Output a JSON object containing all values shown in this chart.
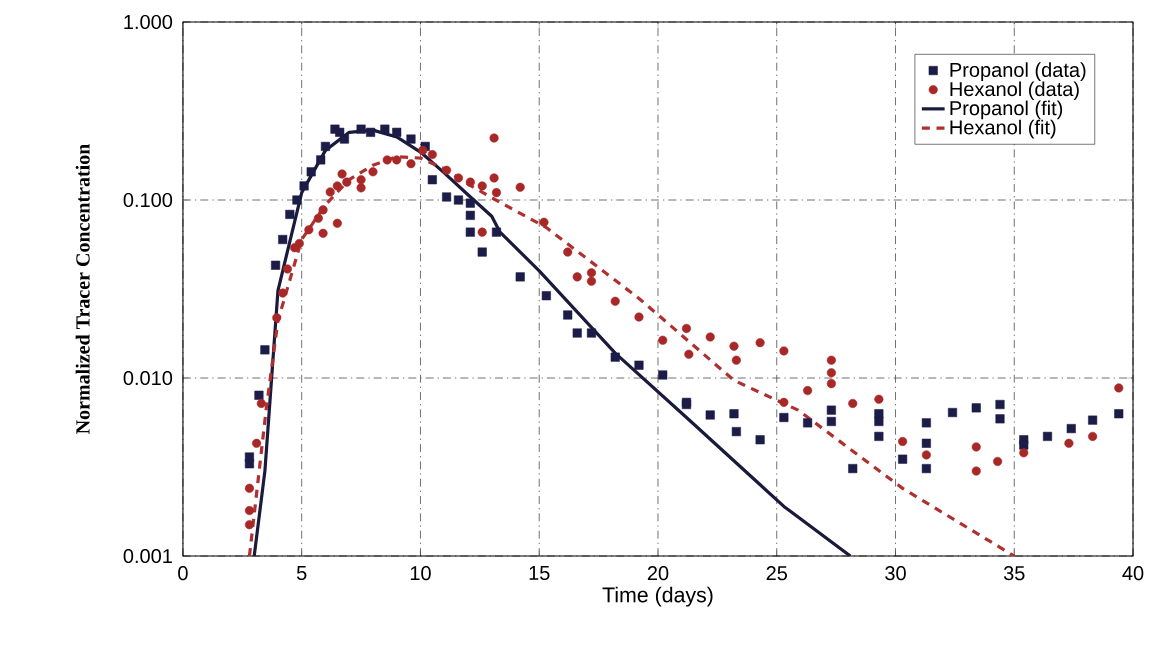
{
  "chart_data": {
    "type": "scatter",
    "xlabel": "Time (days)",
    "ylabel": "Normalized Tracer Concentration",
    "xlim": [
      0,
      40
    ],
    "ylim": [
      0.001,
      1
    ],
    "log": "y",
    "grid": true,
    "legend": "top right",
    "xticks": [
      0,
      5,
      10,
      15,
      20,
      25,
      30,
      35,
      40
    ],
    "yticks": [
      {
        "value": 0.001,
        "label": "0.001"
      },
      {
        "value": 0.01,
        "label": "0.010"
      },
      {
        "value": 0.1,
        "label": "0.100"
      },
      {
        "value": 1,
        "label": "1.000"
      }
    ],
    "series": [
      {
        "name": "Propanol (data)",
        "marker": "square",
        "color": "#1c1c48",
        "x": [
          2.8,
          2.8,
          3.2,
          3.45,
          3.9,
          4.2,
          4.5,
          4.8,
          5.1,
          5.4,
          5.8,
          6.0,
          6.4,
          6.6,
          6.8,
          7.5,
          7.9,
          8.5,
          9.0,
          9.6,
          10.2,
          10.5,
          11.1,
          11.6,
          12.1,
          12.1,
          12.1,
          12.6,
          13.2,
          14.2,
          15.3,
          16.2,
          16.6,
          17.2,
          18.2,
          19.2,
          20.2,
          21.2,
          21.2,
          22.2,
          23.2,
          23.3,
          24.3,
          25.3,
          26.3,
          27.3,
          27.3,
          28.2,
          29.3,
          29.3,
          29.3,
          30.3,
          31.3,
          31.3,
          31.3,
          32.4,
          33.4,
          34.4,
          34.4,
          35.4,
          35.4,
          36.4,
          37.4,
          38.3,
          39.4
        ],
        "values": [
          0.0033,
          0.0036,
          0.008,
          0.0144,
          0.043,
          0.06,
          0.083,
          0.1,
          0.12,
          0.144,
          0.168,
          0.2,
          0.25,
          0.24,
          0.22,
          0.25,
          0.24,
          0.25,
          0.24,
          0.22,
          0.2,
          0.13,
          0.104,
          0.1,
          0.096,
          0.082,
          0.066,
          0.051,
          0.066,
          0.037,
          0.029,
          0.0226,
          0.0179,
          0.0179,
          0.0131,
          0.0118,
          0.0104,
          0.0073,
          0.0071,
          0.0062,
          0.0063,
          0.005,
          0.0045,
          0.006,
          0.0056,
          0.0066,
          0.0057,
          0.0031,
          0.0063,
          0.0057,
          0.0047,
          0.0035,
          0.0056,
          0.0043,
          0.0031,
          0.0064,
          0.0068,
          0.0071,
          0.0059,
          0.0045,
          0.0042,
          0.0047,
          0.0052,
          0.0058,
          0.0063
        ]
      },
      {
        "name": "Hexanol (data)",
        "marker": "circle",
        "color": "#a82828",
        "x": [
          2.8,
          2.8,
          2.8,
          3.1,
          3.3,
          3.95,
          4.2,
          4.4,
          4.7,
          4.9,
          5.3,
          5.7,
          5.9,
          5.9,
          6.2,
          6.5,
          6.5,
          6.7,
          6.9,
          7.5,
          7.5,
          8.0,
          8.6,
          9.0,
          9.6,
          10.1,
          10.5,
          11.1,
          11.6,
          12.1,
          12.6,
          12.6,
          13.1,
          13.1,
          13.2,
          14.2,
          15.2,
          16.2,
          16.6,
          17.2,
          17.2,
          18.2,
          19.2,
          20.2,
          21.2,
          21.3,
          22.2,
          23.2,
          23.3,
          24.3,
          25.3,
          25.3,
          26.3,
          27.3,
          27.3,
          27.3,
          28.2,
          29.3,
          30.3,
          31.3,
          33.4,
          33.4,
          34.3,
          35.4,
          37.3,
          38.3,
          39.4
        ],
        "values": [
          0.0024,
          0.0018,
          0.0015,
          0.0043,
          0.0072,
          0.0218,
          0.03,
          0.041,
          0.054,
          0.057,
          0.068,
          0.079,
          0.065,
          0.088,
          0.111,
          0.074,
          0.12,
          0.14,
          0.126,
          0.13,
          0.117,
          0.144,
          0.168,
          0.168,
          0.16,
          0.19,
          0.18,
          0.147,
          0.133,
          0.126,
          0.12,
          0.066,
          0.223,
          0.133,
          0.11,
          0.118,
          0.075,
          0.051,
          0.037,
          0.039,
          0.035,
          0.027,
          0.022,
          0.0163,
          0.019,
          0.0136,
          0.017,
          0.0151,
          0.0126,
          0.0158,
          0.0142,
          0.0073,
          0.0085,
          0.0126,
          0.0107,
          0.0093,
          0.0072,
          0.0076,
          0.0044,
          0.0037,
          0.0041,
          0.003,
          0.0034,
          0.0038,
          0.0043,
          0.0047,
          0.0088
        ]
      },
      {
        "name": "Propanol (fit)",
        "type": "line",
        "marker": "none",
        "line_style": "solid",
        "color": "#1a1a3c",
        "x": [
          3.0,
          3.45,
          4.0,
          5.0,
          6.0,
          7.0,
          8.0,
          9.0,
          10.0,
          11.0,
          12.0,
          13.0,
          13.35,
          15.0,
          18.2,
          21.2,
          25.3,
          28.1
        ],
        "values": [
          0.001,
          0.003,
          0.031,
          0.11,
          0.19,
          0.24,
          0.247,
          0.226,
          0.186,
          0.142,
          0.107,
          0.081,
          0.066,
          0.04,
          0.0138,
          0.006,
          0.0019,
          0.001
        ]
      },
      {
        "name": "Hexanol (fit)",
        "type": "line",
        "marker": "none",
        "line_style": "dashed",
        "color": "#b03030",
        "x": [
          2.8,
          3.5,
          4.0,
          5.0,
          6.0,
          7.0,
          8.0,
          9.0,
          10.0,
          11.0,
          12.0,
          13.0,
          15.3,
          19.2,
          23.2,
          25.9,
          30.3,
          35.0
        ],
        "values": [
          0.001,
          0.0066,
          0.021,
          0.06,
          0.094,
          0.13,
          0.157,
          0.175,
          0.172,
          0.15,
          0.123,
          0.103,
          0.07,
          0.028,
          0.0097,
          0.0066,
          0.0024,
          0.001
        ]
      }
    ]
  }
}
